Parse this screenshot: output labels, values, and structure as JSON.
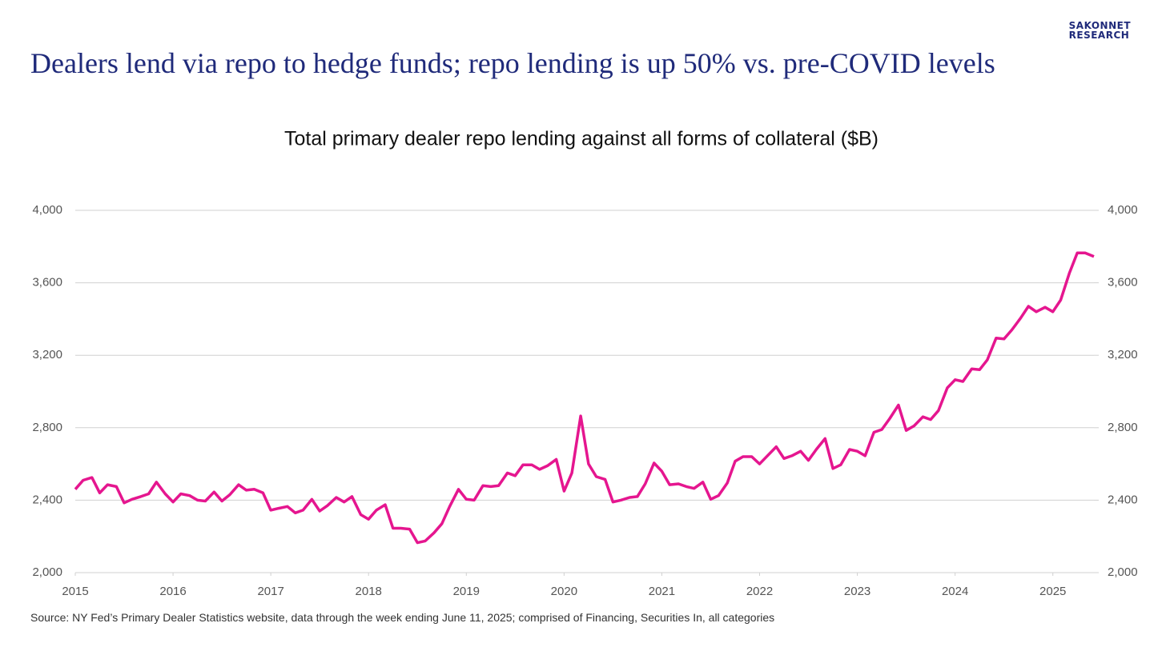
{
  "header": {
    "title": "Dealers lend via repo to hedge funds; repo lending is up 50% vs. pre-COVID levels",
    "brand": [
      "SAKONNET",
      "RESEARCH"
    ]
  },
  "chart_data": {
    "type": "line",
    "title": "Total primary dealer repo lending against all forms of collateral ($B)",
    "note": "Source: NY Fed’s Primary Dealer Statistics website, data through the week ending June 11, 2025; comprised of Financing, Securities In, all categories",
    "xlim": [
      2015,
      2025.42
    ],
    "xticks": [
      2015,
      2016,
      2017,
      2018,
      2019,
      2020,
      2021,
      2022,
      2023,
      2024,
      2025
    ],
    "ylim": [
      2000,
      4000
    ],
    "yticks": [
      {
        "value": 2000,
        "label": "2,000"
      },
      {
        "value": 2400,
        "label": "2,400"
      },
      {
        "value": 2800,
        "label": "2,800"
      },
      {
        "value": 3200,
        "label": "3,200"
      },
      {
        "value": 3600,
        "label": "3,600"
      },
      {
        "value": 4000,
        "label": "4,000"
      }
    ],
    "y2lim": [
      2000,
      4000
    ],
    "y2ticks": [
      {
        "value": 2000,
        "label": "2,000"
      },
      {
        "value": 2400,
        "label": "2,400"
      },
      {
        "value": 2800,
        "label": "2,800"
      },
      {
        "value": 3200,
        "label": "3,200"
      },
      {
        "value": 3600,
        "label": "3,600"
      },
      {
        "value": 4000,
        "label": "4,000"
      }
    ],
    "grid": true,
    "x": [
      2015.0,
      2015.08,
      2015.17,
      2015.25,
      2015.33,
      2015.42,
      2015.5,
      2015.58,
      2015.67,
      2015.75,
      2015.83,
      2015.92,
      2016.0,
      2016.08,
      2016.17,
      2016.25,
      2016.33,
      2016.42,
      2016.5,
      2016.58,
      2016.67,
      2016.75,
      2016.83,
      2016.92,
      2017.0,
      2017.08,
      2017.17,
      2017.25,
      2017.33,
      2017.42,
      2017.5,
      2017.58,
      2017.67,
      2017.75,
      2017.83,
      2017.92,
      2018.0,
      2018.08,
      2018.17,
      2018.25,
      2018.33,
      2018.42,
      2018.5,
      2018.58,
      2018.67,
      2018.75,
      2018.83,
      2018.92,
      2019.0,
      2019.08,
      2019.17,
      2019.25,
      2019.33,
      2019.42,
      2019.5,
      2019.58,
      2019.67,
      2019.75,
      2019.83,
      2019.92,
      2020.0,
      2020.08,
      2020.17,
      2020.25,
      2020.33,
      2020.42,
      2020.5,
      2020.58,
      2020.67,
      2020.75,
      2020.83,
      2020.92,
      2021.0,
      2021.08,
      2021.17,
      2021.25,
      2021.33,
      2021.42,
      2021.5,
      2021.58,
      2021.67,
      2021.75,
      2021.83,
      2021.92,
      2022.0,
      2022.08,
      2022.17,
      2022.25,
      2022.33,
      2022.42,
      2022.5,
      2022.58,
      2022.67,
      2022.75,
      2022.83,
      2022.92,
      2023.0,
      2023.08,
      2023.17,
      2023.25,
      2023.33,
      2023.42,
      2023.5,
      2023.58,
      2023.67,
      2023.75,
      2023.83,
      2023.92,
      2024.0,
      2024.08,
      2024.17,
      2024.25,
      2024.33,
      2024.42,
      2024.5,
      2024.58,
      2024.67,
      2024.75,
      2024.83,
      2024.92,
      2025.0,
      2025.08,
      2025.17,
      2025.25,
      2025.33,
      2025.42
    ],
    "series": [
      {
        "color": "#e5168f",
        "values": [
          2460,
          2510,
          2525,
          2440,
          2485,
          2475,
          2385,
          2405,
          2420,
          2435,
          2500,
          2435,
          2390,
          2435,
          2425,
          2400,
          2395,
          2445,
          2395,
          2430,
          2485,
          2455,
          2460,
          2440,
          2345,
          2355,
          2365,
          2330,
          2345,
          2405,
          2340,
          2370,
          2415,
          2390,
          2420,
          2320,
          2295,
          2345,
          2375,
          2245,
          2245,
          2240,
          2165,
          2175,
          2220,
          2270,
          2365,
          2460,
          2405,
          2400,
          2480,
          2475,
          2480,
          2550,
          2535,
          2595,
          2595,
          2570,
          2590,
          2625,
          2450,
          2550,
          2865,
          2600,
          2530,
          2515,
          2390,
          2400,
          2415,
          2420,
          2490,
          2605,
          2560,
          2485,
          2490,
          2475,
          2465,
          2500,
          2405,
          2425,
          2495,
          2615,
          2640,
          2640,
          2600,
          2645,
          2695,
          2630,
          2645,
          2670,
          2620,
          2680,
          2740,
          2575,
          2595,
          2680,
          2670,
          2645,
          2775,
          2790,
          2850,
          2925,
          2785,
          2810,
          2860,
          2845,
          2895,
          3020,
          3065,
          3055,
          3125,
          3120,
          3175,
          3295,
          3290,
          3340,
          3405,
          3470,
          3440,
          3465,
          3440,
          3505,
          3655,
          3765,
          3765,
          3745
        ]
      }
    ]
  }
}
